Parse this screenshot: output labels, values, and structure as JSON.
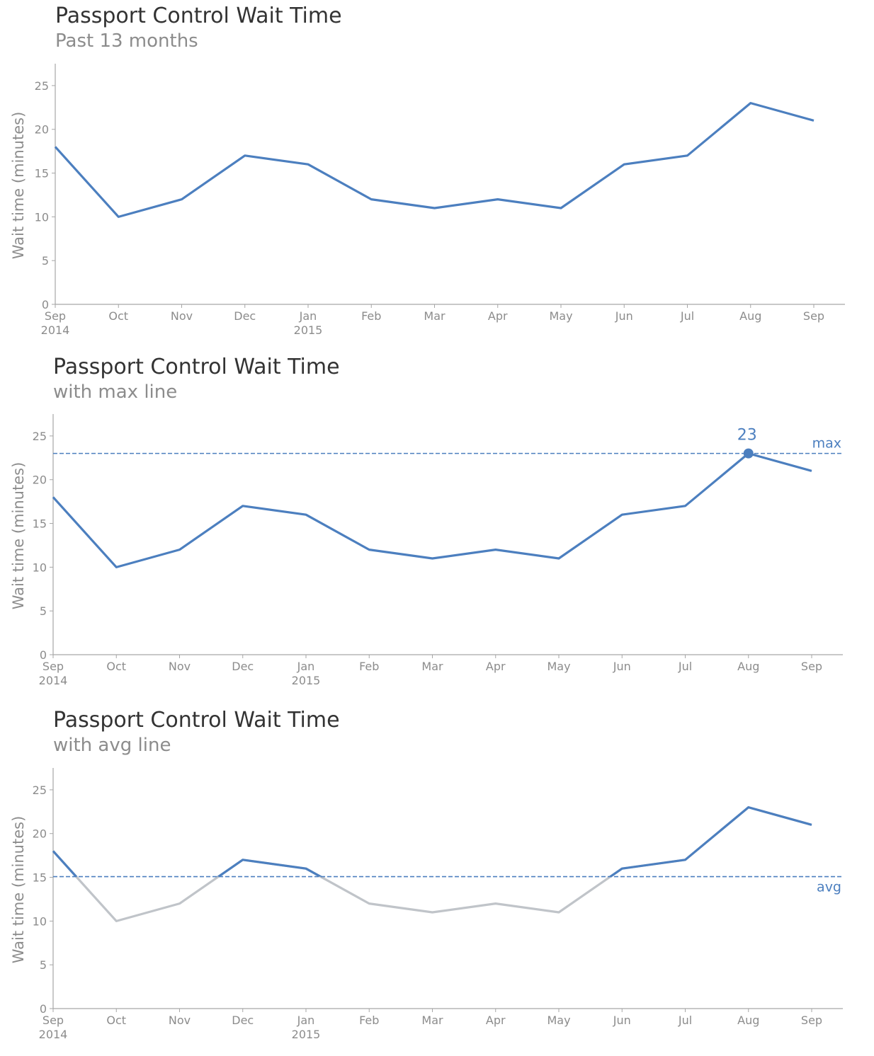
{
  "chart_data": [
    {
      "type": "line",
      "title": "Passport Control Wait Time",
      "subtitle": "Past 13 months",
      "ylabel": "Wait time (minutes)",
      "xlabel": "",
      "x": [
        "Sep",
        "Oct",
        "Nov",
        "Dec",
        "Jan",
        "Feb",
        "Mar",
        "Apr",
        "May",
        "Jun",
        "Jul",
        "Aug",
        "Sep"
      ],
      "x_year_labels": [
        "2014",
        "",
        "",
        "",
        "2015",
        "",
        "",
        "",
        "",
        "",
        "",
        "",
        ""
      ],
      "series": [
        {
          "values": [
            18,
            10,
            12,
            17,
            16,
            12,
            11,
            12,
            11,
            16,
            17,
            23,
            21
          ],
          "color": "#4c7fbf"
        }
      ],
      "yticks": [
        "0",
        "5",
        "10",
        "15",
        "20",
        "25"
      ],
      "ylim": [
        0,
        27.5
      ],
      "grid": false,
      "reference_line": null
    },
    {
      "type": "line",
      "title": "Passport Control Wait Time",
      "subtitle": "with max line",
      "ylabel": "Wait time (minutes)",
      "xlabel": "",
      "x": [
        "Sep",
        "Oct",
        "Nov",
        "Dec",
        "Jan",
        "Feb",
        "Mar",
        "Apr",
        "May",
        "Jun",
        "Jul",
        "Aug",
        "Sep"
      ],
      "x_year_labels": [
        "2014",
        "",
        "",
        "",
        "2015",
        "",
        "",
        "",
        "",
        "",
        "",
        "",
        ""
      ],
      "series": [
        {
          "values": [
            18,
            10,
            12,
            17,
            16,
            12,
            11,
            12,
            11,
            16,
            17,
            23,
            21
          ],
          "color": "#4c7fbf"
        }
      ],
      "yticks": [
        "0",
        "5",
        "10",
        "15",
        "20",
        "25"
      ],
      "ylim": [
        0,
        27.5
      ],
      "grid": false,
      "reference_line": {
        "label": "max",
        "value": 23,
        "color": "#4c7fbf",
        "style": "dashed"
      },
      "highlight_point": {
        "index": 11,
        "value": 23,
        "label": "23",
        "color": "#4c7fbf"
      }
    },
    {
      "type": "line",
      "title": "Passport Control Wait Time",
      "subtitle": "with avg line",
      "ylabel": "Wait time (minutes)",
      "xlabel": "",
      "x": [
        "Sep",
        "Oct",
        "Nov",
        "Dec",
        "Jan",
        "Feb",
        "Mar",
        "Apr",
        "May",
        "Jun",
        "Jul",
        "Aug",
        "Sep"
      ],
      "x_year_labels": [
        "2014",
        "",
        "",
        "",
        "2015",
        "",
        "",
        "",
        "",
        "",
        "",
        "",
        ""
      ],
      "series": [
        {
          "values": [
            18,
            10,
            12,
            17,
            16,
            12,
            11,
            12,
            11,
            16,
            17,
            23,
            21
          ],
          "color": "#4c7fbf",
          "below_reference_color": "#c0c4c9"
        }
      ],
      "yticks": [
        "0",
        "5",
        "10",
        "15",
        "20",
        "25"
      ],
      "ylim": [
        0,
        27.5
      ],
      "grid": false,
      "reference_line": {
        "label": "avg",
        "value": 15.08,
        "color": "#4c7fbf",
        "style": "dashed"
      }
    }
  ],
  "colors": {
    "line": "#4c7fbf",
    "below_avg": "#c0c4c9",
    "axis": "#a6a6a6",
    "tick_text": "#8c8c8c",
    "title": "#333333",
    "subtitle": "#8c8c8c"
  }
}
